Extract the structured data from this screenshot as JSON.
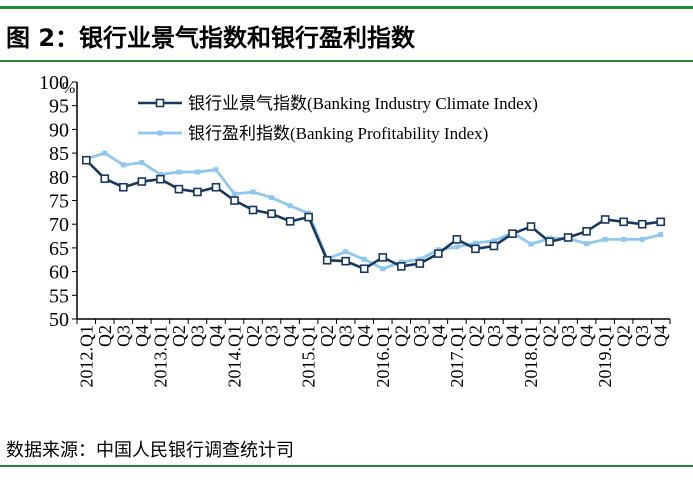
{
  "figure": {
    "title": "图 2：银行业景气指数和银行盈利指数",
    "source": "数据来源：中国人民银行调查统计司"
  },
  "chart_data": {
    "type": "line",
    "y_unit": "%",
    "ylim": [
      50,
      100
    ],
    "y_ticks": [
      "50",
      "55",
      "60",
      "65",
      "70",
      "75",
      "80",
      "85",
      "90",
      "95",
      "100"
    ],
    "x_tick_labels": [
      "2012.Q1",
      "Q2",
      "Q3",
      "Q4",
      "2013.Q1",
      "Q2",
      "Q3",
      "Q4",
      "2014.Q1",
      "Q2",
      "Q3",
      "Q4",
      "2015.Q1",
      "Q2",
      "Q3",
      "Q4",
      "2016.Q1",
      "Q2",
      "Q3",
      "Q4",
      "2017.Q1",
      "Q2",
      "Q3",
      "Q4",
      "2018.Q1",
      "Q2",
      "Q3",
      "Q4",
      "2019.Q1",
      "Q2",
      "Q3",
      "Q4"
    ],
    "legend_position": "top",
    "grid": false,
    "series": [
      {
        "name": "银行业景气指数(Banking Industry Climate Index)",
        "color": "#17375e",
        "marker": "square-hollow",
        "values": [
          83.5,
          79.6,
          77.8,
          79.0,
          79.5,
          77.4,
          76.8,
          77.8,
          75.0,
          73.0,
          72.2,
          70.6,
          71.5,
          62.4,
          62.2,
          60.6,
          63.0,
          61.1,
          61.7,
          63.8,
          66.8,
          64.8,
          65.4,
          68.0,
          69.5,
          66.3,
          67.2,
          68.5,
          71.0,
          70.5,
          70.0,
          70.5
        ]
      },
      {
        "name": "银行盈利指数(Banking Profitability Index)",
        "color": "#8fc8ee",
        "marker": "square-filled",
        "values": [
          83.8,
          85.0,
          82.5,
          83.0,
          80.5,
          81.0,
          81.0,
          81.5,
          76.4,
          76.8,
          75.6,
          73.9,
          72.3,
          62.7,
          64.2,
          62.6,
          60.6,
          62.0,
          62.6,
          64.6,
          65.2,
          66.0,
          66.5,
          68.2,
          65.8,
          67.0,
          67.0,
          65.9,
          66.8,
          66.8,
          66.8,
          67.8
        ]
      }
    ]
  }
}
